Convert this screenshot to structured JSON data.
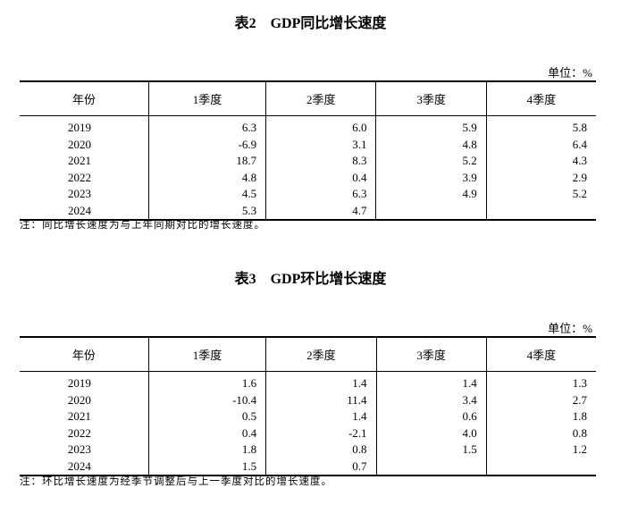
{
  "tables": [
    {
      "title": "表2　GDP同比增长速度",
      "unit": "单位：%",
      "headers": [
        "年份",
        "1季度",
        "2季度",
        "3季度",
        "4季度"
      ],
      "rows": [
        [
          "2019",
          "6.3",
          "6.0",
          "5.9",
          "5.8"
        ],
        [
          "2020",
          "-6.9",
          "3.1",
          "4.8",
          "6.4"
        ],
        [
          "2021",
          "18.7",
          "8.3",
          "5.2",
          "4.3"
        ],
        [
          "2022",
          "4.8",
          "0.4",
          "3.9",
          "2.9"
        ],
        [
          "2023",
          "4.5",
          "6.3",
          "4.9",
          "5.2"
        ],
        [
          "2024",
          "5.3",
          "4.7",
          "",
          ""
        ]
      ],
      "note": "注：同比增长速度为与上年同期对比的增长速度。"
    },
    {
      "title": "表3　GDP环比增长速度",
      "unit": "单位：%",
      "headers": [
        "年份",
        "1季度",
        "2季度",
        "3季度",
        "4季度"
      ],
      "rows": [
        [
          "2019",
          "1.6",
          "1.4",
          "1.4",
          "1.3"
        ],
        [
          "2020",
          "-10.4",
          "11.4",
          "3.4",
          "2.7"
        ],
        [
          "2021",
          "0.5",
          "1.4",
          "0.6",
          "1.8"
        ],
        [
          "2022",
          "0.4",
          "-2.1",
          "4.0",
          "0.8"
        ],
        [
          "2023",
          "1.8",
          "0.8",
          "1.5",
          "1.2"
        ],
        [
          "2024",
          "1.5",
          "0.7",
          "",
          ""
        ]
      ],
      "note": "注：环比增长速度为经季节调整后与上一季度对比的增长速度。"
    }
  ]
}
